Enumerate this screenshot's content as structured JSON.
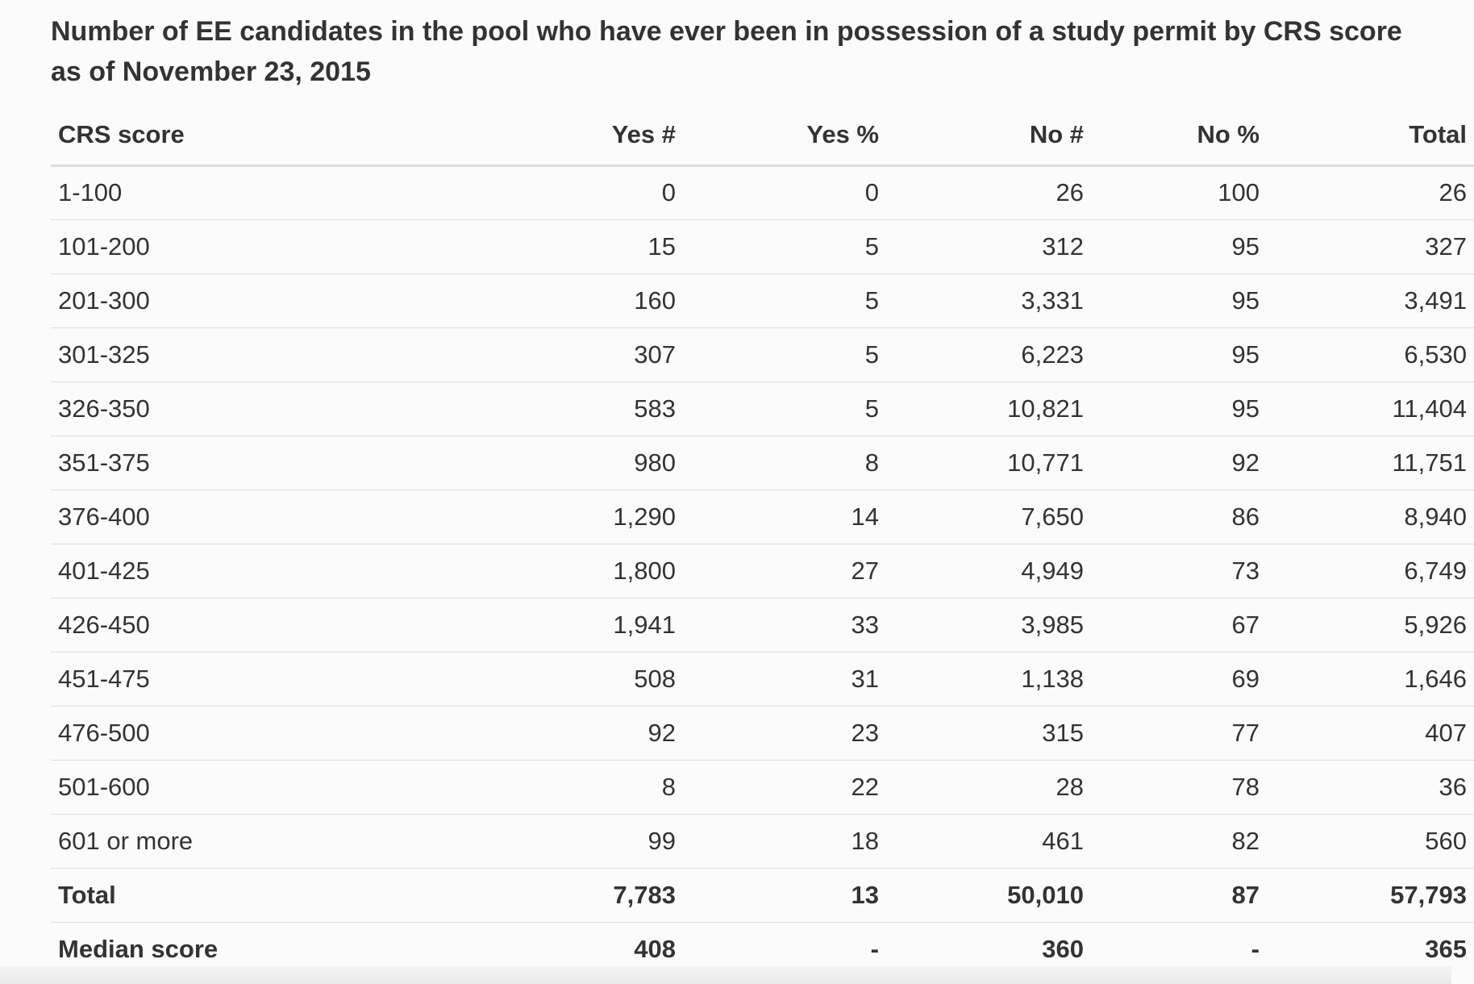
{
  "table": {
    "caption": "Number of EE candidates in the pool who have ever been in possession of a study permit by CRS score as of November 23, 2015",
    "headers": [
      "CRS score",
      "Yes #",
      "Yes %",
      "No #",
      "No %",
      "Total"
    ],
    "rows": [
      [
        "1-100",
        "0",
        "0",
        "26",
        "100",
        "26"
      ],
      [
        "101-200",
        "15",
        "5",
        "312",
        "95",
        "327"
      ],
      [
        "201-300",
        "160",
        "5",
        "3,331",
        "95",
        "3,491"
      ],
      [
        "301-325",
        "307",
        "5",
        "6,223",
        "95",
        "6,530"
      ],
      [
        "326-350",
        "583",
        "5",
        "10,821",
        "95",
        "11,404"
      ],
      [
        "351-375",
        "980",
        "8",
        "10,771",
        "92",
        "11,751"
      ],
      [
        "376-400",
        "1,290",
        "14",
        "7,650",
        "86",
        "8,940"
      ],
      [
        "401-425",
        "1,800",
        "27",
        "4,949",
        "73",
        "6,749"
      ],
      [
        "426-450",
        "1,941",
        "33",
        "3,985",
        "67",
        "5,926"
      ],
      [
        "451-475",
        "508",
        "31",
        "1,138",
        "69",
        "1,646"
      ],
      [
        "476-500",
        "92",
        "23",
        "315",
        "77",
        "407"
      ],
      [
        "501-600",
        "8",
        "22",
        "28",
        "78",
        "36"
      ],
      [
        "601 or more",
        "99",
        "18",
        "461",
        "82",
        "560"
      ],
      [
        "Total",
        "7,783",
        "13",
        "50,010",
        "87",
        "57,793"
      ],
      [
        "Median score",
        "408",
        "-",
        "360",
        "-",
        "365"
      ]
    ]
  }
}
